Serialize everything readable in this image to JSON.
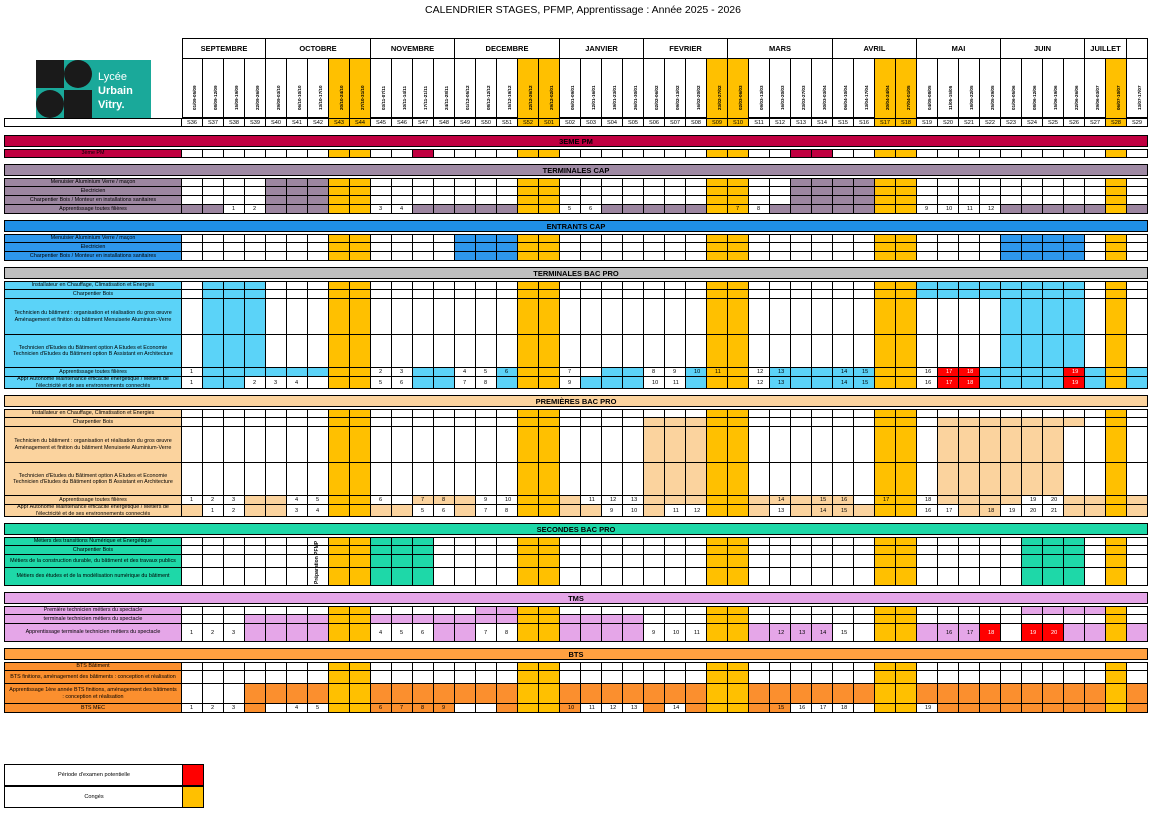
{
  "title": "CALENDRIER STAGES, PFMP, Apprentissage : Année 2025 - 2026",
  "logo": {
    "text_line1": "Lycée",
    "text_line2": "Urbain",
    "text_line3": "Vitry.",
    "color": "#1aa99a"
  },
  "colors": {
    "conges": "#FFC000",
    "examen": "#FF0000",
    "pm_band": "#C00040",
    "pm_fill": "#C00040",
    "tcap_band": "#9F8AA4",
    "tcap_fill": "#9C86A0",
    "ecap_band": "#1F8FE6",
    "ecap_fill": "#2E97EC",
    "tbac_band": "#BFBFBF",
    "tbac_fill": "#5BD3F8",
    "pbac_band": "#FBD39E",
    "pbac_fill": "#FBD39E",
    "sbac_band": "#1ED8A8",
    "sbac_fill": "#1ED8A8",
    "tms_band": "#E5A6E8",
    "tms_fill": "#E5A6E8",
    "bts_band": "#FFA040",
    "bts_fill": "#FB8F2E"
  },
  "months": [
    {
      "label": "SEPTEMBRE",
      "span": 4
    },
    {
      "label": "OCTOBRE",
      "span": 5
    },
    {
      "label": "NOVEMBRE",
      "span": 4
    },
    {
      "label": "DECEMBRE",
      "span": 5
    },
    {
      "label": "JANVIER",
      "span": 4
    },
    {
      "label": "FEVRIER",
      "span": 4
    },
    {
      "label": "MARS",
      "span": 5
    },
    {
      "label": "AVRIL",
      "span": 4
    },
    {
      "label": "MAI",
      "span": 4
    },
    {
      "label": "JUIN",
      "span": 4
    },
    {
      "label": "JUILLET",
      "span": 2
    },
    {
      "label": "",
      "span": 1
    }
  ],
  "weeks": [
    "S36",
    "S37",
    "S38",
    "S39",
    "S40",
    "S41",
    "S42",
    "S43",
    "S44",
    "S45",
    "S46",
    "S47",
    "S48",
    "S49",
    "S50",
    "S51",
    "S52",
    "S01",
    "S02",
    "S03",
    "S04",
    "S05",
    "S06",
    "S07",
    "S08",
    "S09",
    "S10",
    "S11",
    "S12",
    "S13",
    "S14",
    "S15",
    "S16",
    "S17",
    "S18",
    "S19",
    "S20",
    "S21",
    "S22",
    "S23",
    "S24",
    "S25",
    "S26",
    "S27",
    "S28",
    "S29"
  ],
  "dates": [
    "01/09-05/09",
    "08/09-12/09",
    "15/09-19/09",
    "22/09-26/09",
    "29/09-03/10",
    "06/10-10/10",
    "13/10-17/10",
    "20/10-24/10",
    "27/10-31/10",
    "03/11-07/11",
    "10/11-14/11",
    "17/11-21/11",
    "24/11-28/11",
    "01/12-05/12",
    "08/12-12/12",
    "15/12-19/12",
    "22/12-26/12",
    "29/12-02/01",
    "05/01-09/01",
    "12/01-16/01",
    "19/01-23/01",
    "26/01-30/01",
    "02/02-06/02",
    "09/02-13/02",
    "16/02-20/02",
    "23/02-27/02",
    "02/03-06/03",
    "09/03-13/03",
    "16/03-20/03",
    "23/03-27/03",
    "30/03-03/04",
    "06/04-10/04",
    "13/04-17/04",
    "20/04-24/04",
    "27/04-01/05",
    "04/05-08/05",
    "11/05-15/05",
    "18/05-22/05",
    "25/05-29/05",
    "01/06-05/06",
    "08/06-12/06",
    "15/06-19/06",
    "22/06-26/06",
    "29/06-03/07",
    "06/07-10/07",
    "13/07-17/07"
  ],
  "sections": [
    {
      "title": "3EME PM",
      "band_color": "pm_band",
      "rows": [
        {
          "label": "3ème PM",
          "fill": "pm_fill",
          "weeks": [
            11,
            29,
            30
          ],
          "nums": {}
        }
      ]
    },
    {
      "title": "TERMINALES CAP",
      "band_color": "tcap_band",
      "rows": [
        {
          "label": "Menuisier Aluminium Verre / maçon",
          "fill": "tcap_fill",
          "weeks": [
            4,
            5,
            6,
            29,
            30,
            31,
            32
          ],
          "nums": {}
        },
        {
          "label": "Electricien",
          "fill": "tcap_fill",
          "weeks": [
            4,
            5,
            6,
            29,
            30,
            31,
            32
          ],
          "nums": {}
        },
        {
          "label": "Charpentier Bois / Monteur en installations sanitaires",
          "fill": "tcap_fill",
          "weeks": [
            4,
            5,
            6,
            29,
            30,
            31,
            32
          ],
          "nums": {}
        },
        {
          "label": "Apprentissage toutes filières",
          "fill": "tcap_fill",
          "weeks": [
            0,
            1,
            4,
            5,
            6,
            7,
            8,
            11,
            12,
            13,
            14,
            15,
            16,
            17,
            20,
            21,
            22,
            23,
            24,
            25,
            28,
            29,
            30,
            31,
            32,
            33,
            34,
            39,
            40,
            41,
            42,
            43,
            44,
            45
          ],
          "nums": {
            "2": "1",
            "3": "2",
            "9": "3",
            "10": "4",
            "18": "5",
            "19": "6",
            "26": "7",
            "27": "8",
            "35": "9",
            "36": "10",
            "37": "11",
            "38": "12"
          }
        }
      ]
    },
    {
      "title": "ENTRANTS CAP",
      "band_color": "ecap_band",
      "rows": [
        {
          "label": "Menuisier Aluminium Verre / maçon",
          "fill": "ecap_fill",
          "weeks": [
            13,
            14,
            15,
            39,
            40,
            41,
            42
          ],
          "nums": {}
        },
        {
          "label": "Electricien",
          "fill": "ecap_fill",
          "weeks": [
            13,
            14,
            15,
            39,
            40,
            41,
            42
          ],
          "nums": {}
        },
        {
          "label": "Charpentier Bois / Monteur en installations sanitaires",
          "fill": "ecap_fill",
          "weeks": [
            13,
            14,
            15,
            39,
            40,
            41,
            42
          ],
          "nums": {}
        }
      ]
    },
    {
      "title": "TERMINALES BAC PRO",
      "band_color": "tbac_band",
      "rows": [
        {
          "label": "Installateur en Chauffage, Climatisation et Energies",
          "fill": "tbac_fill",
          "weeks": [
            1,
            2,
            3,
            35,
            36,
            37,
            38,
            39,
            40,
            41,
            42
          ],
          "nums": {}
        },
        {
          "label": "Charpentier Bois",
          "fill": "tbac_fill",
          "weeks": [
            1,
            2,
            3,
            35,
            36,
            37,
            38,
            39,
            40,
            41,
            42
          ],
          "nums": {}
        },
        {
          "label": "Technicien du bâtiment : organisation et réalisation du gros œuvre Aménagement et finition du bâtiment Menuiserie Aluminium-Verre",
          "fill": "tbac_fill",
          "weeks": [
            1,
            2,
            3,
            39,
            40,
            41,
            42
          ],
          "nums": {},
          "h": 36
        },
        {
          "label": "Technicien d'Etudes du Bâtiment option A Etudes et Economie Technicien d'Etudes du Bâtiment option B Assistant en Architecture",
          "fill": "tbac_fill",
          "weeks": [
            1,
            2,
            3,
            39,
            40,
            41,
            42
          ],
          "nums": {},
          "h": 33
        },
        {
          "label": "Apprentissage toutes filières",
          "fill": "tbac_fill",
          "weeks": [
            1,
            2,
            3,
            4,
            5,
            6,
            7,
            8,
            11,
            12,
            15,
            16,
            17,
            20,
            21,
            24,
            25,
            28,
            29,
            30,
            31,
            32,
            33,
            34,
            37,
            38,
            39,
            40,
            41,
            42,
            43,
            44,
            45
          ],
          "nums": {
            "0": "1",
            "9": "2",
            "10": "3",
            "13": "4",
            "14": "5",
            "15": "6",
            "18": "7",
            "22": "8",
            "23": "9",
            "24": "10",
            "25": "11",
            "27": "12",
            "28": "13",
            "31": "14",
            "32": "15",
            "35": "16",
            "36": "17",
            "37": "18",
            "42": "19"
          },
          "red": [
            36,
            37,
            42
          ]
        },
        {
          "label": "Appr Autonome Maintenance efficacité énergétique / Métiers de l'électricité et de ses environnements connectés",
          "fill": "tbac_fill",
          "weeks": [
            1,
            2,
            7,
            8,
            11,
            12,
            15,
            16,
            17,
            19,
            20,
            21,
            24,
            25,
            28,
            29,
            30,
            31,
            32,
            33,
            34,
            37,
            38,
            39,
            40,
            41,
            42,
            43,
            44,
            45
          ],
          "nums": {
            "0": "1",
            "3": "2",
            "4": "3",
            "5": "4",
            "9": "5",
            "10": "6",
            "13": "7",
            "14": "8",
            "18": "9",
            "22": "10",
            "23": "11",
            "27": "12",
            "28": "13",
            "31": "14",
            "32": "15",
            "35": "16",
            "36": "17",
            "37": "18",
            "42": "19"
          },
          "red": [
            36,
            37,
            42
          ],
          "h": 12
        }
      ]
    },
    {
      "title": "PREMIÈRES BAC PRO",
      "band_color": "pbac_band",
      "rows": [
        {
          "label": "Installateur en Chauffage, Climatisation et Energies",
          "fill": "pbac_fill",
          "weeks": [],
          "nums": {}
        },
        {
          "label": "Charpentier Bois",
          "fill": "pbac_fill",
          "weeks": [
            22,
            23,
            24,
            25,
            36,
            37,
            38,
            39,
            40,
            41,
            42
          ],
          "nums": {}
        },
        {
          "label": "Technicien du bâtiment : organisation et réalisation du gros œuvre Aménagement et finition du bâtiment Menuiserie Aluminium-Verre",
          "fill": "pbac_fill",
          "weeks": [
            22,
            23,
            24,
            25,
            36,
            37,
            38,
            39,
            40,
            41
          ],
          "nums": {},
          "h": 36
        },
        {
          "label": "Technicien d'Etudes du Bâtiment option A Etudes et Economie Technicien d'Etudes du Bâtiment option B Assistant en Architecture",
          "fill": "pbac_fill",
          "weeks": [
            22,
            23,
            24,
            25,
            36,
            37,
            38,
            39,
            40,
            41
          ],
          "nums": {},
          "h": 33
        },
        {
          "label": "Apprentissage toutes filières",
          "fill": "pbac_fill",
          "weeks": [
            3,
            4,
            7,
            8,
            11,
            12,
            13,
            16,
            17,
            18,
            22,
            23,
            24,
            25,
            26,
            27,
            28,
            29,
            30,
            31,
            33,
            34,
            36,
            37,
            38,
            39,
            42,
            43,
            44,
            45
          ],
          "nums": {
            "0": "1",
            "1": "2",
            "2": "3",
            "5": "4",
            "6": "5",
            "9": "6",
            "11": "7",
            "12": "8",
            "14": "9",
            "15": "10",
            "19": "11",
            "20": "12",
            "21": "13",
            "28": "14",
            "30": "15",
            "31": "16",
            "33": "17",
            "35": "18",
            "40": "19",
            "41": "20"
          }
        },
        {
          "label": "Appr Autonome Maintenance efficacité énergétique / Métiers de l'électricité et de ses environnements connectés",
          "fill": "pbac_fill",
          "weeks": [
            0,
            3,
            4,
            7,
            8,
            9,
            10,
            13,
            16,
            17,
            18,
            19,
            22,
            25,
            26,
            27,
            29,
            30,
            31,
            32,
            33,
            34,
            37,
            38,
            42,
            43,
            44,
            45
          ],
          "nums": {
            "1": "1",
            "2": "2",
            "5": "3",
            "6": "4",
            "11": "5",
            "12": "6",
            "14": "7",
            "15": "8",
            "20": "9",
            "21": "10",
            "23": "11",
            "24": "12",
            "28": "13",
            "30": "14",
            "31": "15",
            "35": "16",
            "36": "17",
            "38": "18",
            "39": "19",
            "40": "20",
            "41": "21"
          },
          "h": 12
        }
      ]
    },
    {
      "title": "SECONDES BAC PRO",
      "band_color": "sbac_band",
      "prep_label": "Préparation PFMP",
      "rows": [
        {
          "label": "Métiers des transitions Numérique et Energétique",
          "fill": "sbac_fill",
          "weeks": [
            9,
            10,
            11,
            40,
            41,
            42
          ],
          "nums": {}
        },
        {
          "label": "Charpentier Bois",
          "fill": "sbac_fill",
          "weeks": [
            9,
            10,
            11,
            40,
            41,
            42
          ],
          "nums": {}
        },
        {
          "label": "Métiers de la construction durable, du bâtiment et des travaux publics",
          "fill": "sbac_fill",
          "weeks": [
            9,
            10,
            11,
            40,
            41,
            42
          ],
          "nums": {},
          "h": 13
        },
        {
          "label": "Métiers des études et de la modélisation numérique du bâtiment",
          "fill": "sbac_fill",
          "weeks": [
            9,
            10,
            11,
            40,
            41,
            42
          ],
          "nums": {},
          "h": 18
        }
      ]
    },
    {
      "title": "TMS",
      "band_color": "tms_band",
      "rows": [
        {
          "label": "Première technicien métiers du spectacle",
          "fill": "tms_fill",
          "weeks": [
            14,
            15,
            16,
            17,
            40,
            41,
            42,
            43
          ],
          "nums": {}
        },
        {
          "label": "terminale technicien métiers du spectacle",
          "fill": "tms_fill",
          "weeks": [
            3,
            4,
            5,
            6,
            7,
            8,
            9,
            10,
            11,
            12,
            13,
            14,
            15,
            16,
            17,
            18,
            19,
            20,
            21
          ],
          "nums": {}
        },
        {
          "label": "Apprentissage terminale technicien métiers du spectacle",
          "fill": "tms_fill",
          "weeks": [
            3,
            4,
            5,
            6,
            7,
            8,
            12,
            13,
            16,
            17,
            18,
            19,
            20,
            21,
            25,
            26,
            27,
            28,
            29,
            30,
            33,
            34,
            35,
            36,
            37,
            40,
            41,
            42,
            43,
            44,
            45
          ],
          "nums": {
            "0": "1",
            "1": "2",
            "2": "3",
            "9": "4",
            "10": "5",
            "11": "6",
            "14": "7",
            "15": "8",
            "22": "9",
            "23": "10",
            "24": "11",
            "28": "12",
            "29": "13",
            "30": "14",
            "31": "15",
            "36": "16",
            "37": "17",
            "38": "18",
            "40": "19",
            "41": "20"
          },
          "red": [
            38,
            40,
            41
          ],
          "h": 18
        }
      ]
    },
    {
      "title": "BTS",
      "band_color": "bts_band",
      "rows": [
        {
          "label": "BTS Bâtiment",
          "fill": "bts_fill",
          "weeks": [],
          "nums": {}
        },
        {
          "label": "BTS finitions, aménagement des bâtiments : conception et réalisation",
          "fill": "bts_fill",
          "weeks": [],
          "nums": {},
          "h": 13
        },
        {
          "label": "Apprentissage 1ère année BTS finitions, aménagement des bâtiments : conception et réalisation",
          "fill": "bts_fill",
          "weeks": [
            3,
            4,
            5,
            6,
            7,
            8,
            9,
            10,
            11,
            12,
            13,
            14,
            15,
            16,
            17,
            18,
            19,
            20,
            21,
            22,
            23,
            24,
            25,
            26,
            27,
            28,
            29,
            30,
            31,
            32,
            33,
            34,
            35,
            36,
            37,
            38,
            39,
            40,
            41,
            42,
            43,
            44,
            45
          ],
          "nums": {},
          "h": 20
        },
        {
          "label": "BTS MEC",
          "fill": "bts_fill",
          "weeks": [
            3,
            7,
            8,
            9,
            10,
            11,
            12,
            15,
            16,
            17,
            18,
            22,
            24,
            25,
            26,
            27,
            28,
            33,
            34,
            36,
            37,
            38,
            39,
            40,
            41,
            42,
            43,
            44,
            45
          ],
          "nums": {
            "0": "1",
            "1": "2",
            "2": "3",
            "5": "4",
            "6": "5",
            "9": "6",
            "10": "7",
            "11": "8",
            "12": "9",
            "18": "10",
            "19": "11",
            "20": "12",
            "21": "13",
            "23": "14",
            "28": "15",
            "29": "16",
            "30": "17",
            "31": "18",
            "35": "19"
          }
        }
      ]
    }
  ],
  "conges_weeks": [
    7,
    8,
    16,
    17,
    25,
    26,
    33,
    34,
    44
  ],
  "legend": [
    {
      "label": "Période d'examen potentielle",
      "color": "examen"
    },
    {
      "label": "Congés",
      "color": "conges"
    }
  ]
}
